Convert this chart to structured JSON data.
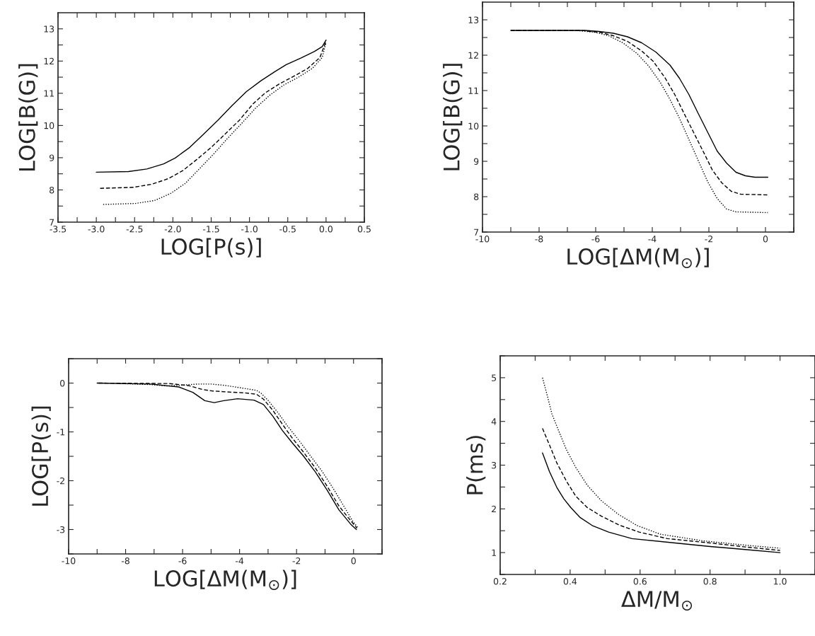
{
  "chart_data": [
    {
      "type": "line",
      "xlabel": "LOG[P(s)]",
      "ylabel": "LOG[B(G)]",
      "xlim": [
        -3.5,
        0.5
      ],
      "ylim": [
        7,
        13.5
      ],
      "xticks": [
        -3.5,
        {
          "value": -3.25,
          "label": null
        },
        {
          "value": -3,
          "label": "-3.0"
        },
        {
          "value": -2.75,
          "label": null
        },
        -2.5,
        {
          "value": -2.25,
          "label": null
        },
        {
          "value": -2,
          "label": "-2.0"
        },
        {
          "value": -1.75,
          "label": null
        },
        -1.5,
        {
          "value": -1.25,
          "label": null
        },
        {
          "value": -1,
          "label": "-1.0"
        },
        {
          "value": -0.75,
          "label": null
        },
        -0.5,
        {
          "value": -0.25,
          "label": null
        },
        {
          "value": 0,
          "label": "0.0"
        },
        {
          "value": 0.25,
          "label": null
        },
        0.5
      ],
      "yticks": [
        7,
        {
          "value": 7.5,
          "label": null
        },
        8,
        {
          "value": 8.5,
          "label": null
        },
        9,
        {
          "value": 9.5,
          "label": null
        },
        10,
        {
          "value": 10.5,
          "label": null
        },
        11,
        {
          "value": 11.5,
          "label": null
        },
        12,
        {
          "value": 12.5,
          "label": null
        },
        13
      ],
      "grid": false,
      "series": [
        {
          "color": "#000000",
          "line_style": "solid",
          "x": [
            -3.0,
            -2.58,
            -2.34,
            -2.12,
            -1.97,
            -1.78,
            -1.6,
            -1.41,
            -1.23,
            -1.04,
            -0.85,
            -0.67,
            -0.52,
            -0.33,
            -0.15,
            -0.05,
            0.0
          ],
          "values": [
            8.55,
            8.57,
            8.65,
            8.81,
            8.99,
            9.32,
            9.73,
            10.17,
            10.61,
            11.05,
            11.39,
            11.67,
            11.89,
            12.09,
            12.3,
            12.45,
            12.65
          ]
        },
        {
          "color": "#000000",
          "line_style": "dashed",
          "x": [
            -2.95,
            -2.52,
            -2.27,
            -2.06,
            -1.87,
            -1.69,
            -1.5,
            -1.32,
            -1.13,
            -0.95,
            -0.79,
            -0.61,
            -0.42,
            -0.24,
            -0.08,
            0.0
          ],
          "values": [
            8.05,
            8.08,
            8.18,
            8.35,
            8.6,
            8.94,
            9.32,
            9.73,
            10.17,
            10.68,
            11.02,
            11.29,
            11.53,
            11.77,
            12.11,
            12.62
          ]
        },
        {
          "color": "#000000",
          "line_style": "dotted",
          "x": [
            -2.91,
            -2.49,
            -2.24,
            -2.03,
            -1.84,
            -1.66,
            -1.47,
            -1.29,
            -1.1,
            -0.92,
            -0.73,
            -0.55,
            -0.36,
            -0.18,
            -0.05,
            0.0
          ],
          "values": [
            7.55,
            7.58,
            7.67,
            7.89,
            8.2,
            8.64,
            9.11,
            9.59,
            10.07,
            10.54,
            10.95,
            11.26,
            11.5,
            11.77,
            12.11,
            12.58
          ]
        }
      ]
    },
    {
      "type": "line",
      "xlabel": "LOG[ΔM(M$_{⊙}$)]",
      "ylabel": "LOG[B(G)]",
      "xlim": [
        -10,
        1
      ],
      "ylim": [
        7,
        13.5
      ],
      "xticks": [
        -10,
        {
          "value": -9,
          "label": null
        },
        -8,
        {
          "value": -7,
          "label": null
        },
        -6,
        {
          "value": -5,
          "label": null
        },
        -4,
        {
          "value": -3,
          "label": null
        },
        -2,
        {
          "value": -1,
          "label": null
        },
        0,
        {
          "value": 1,
          "label": null
        }
      ],
      "yticks": [
        7,
        {
          "value": 7.5,
          "label": null
        },
        8,
        {
          "value": 8.5,
          "label": null
        },
        9,
        {
          "value": 9.5,
          "label": null
        },
        10,
        {
          "value": 10.5,
          "label": null
        },
        11,
        {
          "value": 11.5,
          "label": null
        },
        12,
        {
          "value": 12.5,
          "label": null
        },
        13
      ],
      "grid": false,
      "series": [
        {
          "color": "#000000",
          "line_style": "solid",
          "x": [
            -9,
            -6.375,
            -5.875,
            -5.375,
            -4.875,
            -4.375,
            -3.875,
            -3.375,
            -3.042,
            -2.708,
            -2.375,
            -2.042,
            -1.708,
            -1.375,
            -1.042,
            -0.708,
            -0.375,
            0.083
          ],
          "values": [
            12.7,
            12.7,
            12.67,
            12.62,
            12.52,
            12.35,
            12.09,
            11.72,
            11.35,
            10.89,
            10.35,
            9.82,
            9.29,
            8.95,
            8.69,
            8.59,
            8.55,
            8.55
          ]
        },
        {
          "color": "#000000",
          "line_style": "dashed",
          "x": [
            -9,
            -6.542,
            -5.875,
            -5.375,
            -4.875,
            -4.375,
            -3.958,
            -3.542,
            -3.208,
            -2.875,
            -2.542,
            -2.208,
            -1.875,
            -1.542,
            -1.208,
            -0.875,
            0.083
          ],
          "values": [
            12.7,
            12.7,
            12.65,
            12.55,
            12.39,
            12.12,
            11.82,
            11.35,
            10.89,
            10.35,
            9.82,
            9.29,
            8.75,
            8.39,
            8.15,
            8.07,
            8.05
          ]
        },
        {
          "color": "#000000",
          "line_style": "dotted",
          "x": [
            -9,
            -6.708,
            -6.042,
            -5.542,
            -5.042,
            -4.542,
            -4.125,
            -3.708,
            -3.375,
            -3.042,
            -2.708,
            -2.375,
            -2.042,
            -1.708,
            -1.375,
            -1.042,
            0.083
          ],
          "values": [
            12.7,
            12.7,
            12.65,
            12.55,
            12.35,
            12.05,
            11.69,
            11.22,
            10.75,
            10.22,
            9.62,
            9.02,
            8.42,
            7.95,
            7.65,
            7.57,
            7.55
          ]
        }
      ]
    },
    {
      "type": "line",
      "xlabel": "LOG[ΔM(M$_{⊙}$)]",
      "ylabel": "LOG[P(s)]",
      "xlim": [
        -10,
        1
      ],
      "ylim": [
        -3.5,
        0.5
      ],
      "xticks": [
        -10,
        {
          "value": -9,
          "label": null
        },
        -8,
        {
          "value": -7,
          "label": null
        },
        -6,
        {
          "value": -5,
          "label": null
        },
        -4,
        {
          "value": -3,
          "label": null
        },
        -2,
        {
          "value": -1,
          "label": null
        },
        0,
        {
          "value": 1,
          "label": null
        }
      ],
      "yticks": [
        {
          "value": -3.5,
          "label": null
        },
        -3,
        {
          "value": -2.5,
          "label": null
        },
        -2,
        {
          "value": -1.5,
          "label": null
        },
        -1,
        {
          "value": -0.5,
          "label": null
        },
        0,
        {
          "value": 0.5,
          "label": null
        }
      ],
      "grid": false,
      "series": [
        {
          "color": "#000000",
          "line_style": "solid",
          "x": [
            -9,
            -7.12,
            -6.13,
            -5.64,
            -5.22,
            -4.89,
            -4.56,
            -4.07,
            -3.49,
            -3.16,
            -2.83,
            -2.5,
            -2.17,
            -1.75,
            -1.34,
            -0.93,
            -0.51,
            -0.1,
            0.1
          ],
          "values": [
            0.0,
            -0.02,
            -0.08,
            -0.19,
            -0.36,
            -0.4,
            -0.36,
            -0.32,
            -0.35,
            -0.44,
            -0.68,
            -0.97,
            -1.21,
            -1.5,
            -1.82,
            -2.19,
            -2.6,
            -2.89,
            -3.0
          ]
        },
        {
          "color": "#000000",
          "line_style": "dashed",
          "x": [
            -8.95,
            -6.46,
            -5.8,
            -5.31,
            -4.98,
            -4.48,
            -3.82,
            -3.4,
            -3.16,
            -2.83,
            -2.5,
            -2.17,
            -1.75,
            -1.34,
            -0.93,
            -0.51,
            -0.1,
            0.12
          ],
          "values": [
            0.0,
            -0.01,
            -0.05,
            -0.13,
            -0.16,
            -0.18,
            -0.2,
            -0.23,
            -0.33,
            -0.56,
            -0.84,
            -1.11,
            -1.42,
            -1.74,
            -2.11,
            -2.52,
            -2.82,
            -2.97
          ]
        },
        {
          "color": "#000000",
          "line_style": "dotted",
          "x": [
            -8.2,
            -7.12,
            -6.55,
            -5.97,
            -5.47,
            -4.98,
            -4.48,
            -3.82,
            -3.4,
            -3.24,
            -2.99,
            -2.66,
            -2.33,
            -1.92,
            -1.5,
            -1.09,
            -0.68,
            -0.26,
            -0.02,
            0.14
          ],
          "values": [
            -0.01,
            -0.03,
            -0.06,
            -0.04,
            -0.02,
            -0.02,
            -0.05,
            -0.11,
            -0.15,
            -0.21,
            -0.36,
            -0.6,
            -0.87,
            -1.17,
            -1.5,
            -1.82,
            -2.19,
            -2.6,
            -2.84,
            -2.95
          ]
        }
      ]
    },
    {
      "type": "line",
      "xlabel": "ΔM/M$_{⊙}$",
      "ylabel": "P(ms)",
      "xlim": [
        0.2,
        1.1
      ],
      "ylim": [
        0.5,
        5.5
      ],
      "xticks": [
        0.2,
        {
          "value": 0.3,
          "label": null
        },
        0.4,
        {
          "value": 0.5,
          "label": null
        },
        0.6,
        {
          "value": 0.7,
          "label": null
        },
        0.8,
        {
          "value": 0.9,
          "label": null
        },
        {
          "value": 1,
          "label": "1.0"
        },
        {
          "value": 1.1,
          "label": null
        }
      ],
      "yticks": [
        {
          "value": 0.5,
          "label": null
        },
        1,
        {
          "value": 1.5,
          "label": null
        },
        2,
        {
          "value": 2.5,
          "label": null
        },
        3,
        {
          "value": 3.5,
          "label": null
        },
        4,
        {
          "value": 4.5,
          "label": null
        },
        5,
        {
          "value": 5.5,
          "label": null
        }
      ],
      "grid": false,
      "series": [
        {
          "color": "#000000",
          "line_style": "solid",
          "x": [
            0.321,
            0.341,
            0.362,
            0.382,
            0.402,
            0.429,
            0.463,
            0.51,
            0.577,
            0.7,
            0.8,
            0.9,
            1.0
          ],
          "values": [
            3.28,
            2.85,
            2.49,
            2.23,
            2.03,
            1.8,
            1.62,
            1.47,
            1.32,
            1.22,
            1.14,
            1.07,
            1.0
          ]
        },
        {
          "color": "#000000",
          "line_style": "dashed",
          "x": [
            0.321,
            0.341,
            0.362,
            0.389,
            0.416,
            0.449,
            0.49,
            0.543,
            0.597,
            0.678,
            0.8,
            0.9,
            1.0
          ],
          "values": [
            3.84,
            3.46,
            3.05,
            2.64,
            2.29,
            2.03,
            1.83,
            1.62,
            1.47,
            1.32,
            1.22,
            1.13,
            1.05
          ]
        },
        {
          "color": "#000000",
          "line_style": "dotted",
          "x": [
            0.321,
            0.335,
            0.348,
            0.368,
            0.389,
            0.416,
            0.449,
            0.49,
            0.537,
            0.591,
            0.658,
            0.779,
            0.9,
            1.0
          ],
          "values": [
            5.0,
            4.58,
            4.17,
            3.77,
            3.36,
            2.95,
            2.54,
            2.18,
            1.88,
            1.62,
            1.42,
            1.27,
            1.17,
            1.1
          ]
        }
      ]
    }
  ]
}
